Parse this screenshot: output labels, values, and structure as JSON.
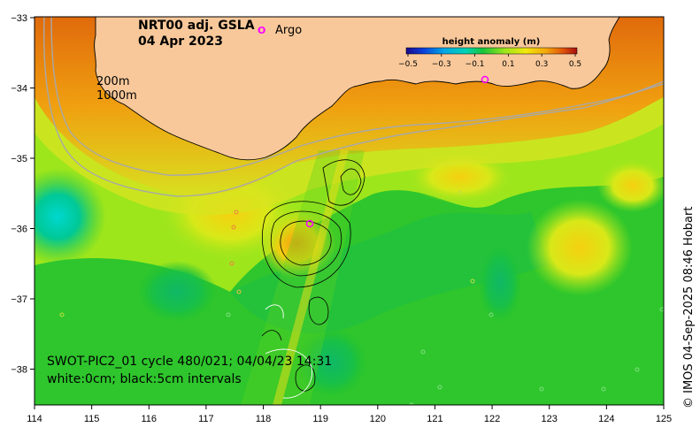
{
  "title": {
    "line1": "NRT00 adj. GSLA",
    "line2": "04 Apr 2023"
  },
  "legend": {
    "argo_marker": "O",
    "argo_label": "Argo"
  },
  "isobaths": {
    "label_200": "200m",
    "label_1000": "1000m"
  },
  "colorbar": {
    "title": "height anomaly (m)",
    "ticks": [
      "−0.5",
      "−0.3",
      "−0.1",
      "0.1",
      "0.3",
      "0.5"
    ],
    "colors": [
      "#1a0a8c",
      "#0b3fd9",
      "#00a6e8",
      "#00d4b5",
      "#19c43a",
      "#9ee61c",
      "#f2e80d",
      "#f5a60a",
      "#e0520a",
      "#a50d0d"
    ]
  },
  "overlay": {
    "line1": "SWOT-PIC2_01 cycle 480/021; 04/04/23 14:31",
    "line2": "white:0cm; black:5cm intervals"
  },
  "credit": "© IMOS 04-Sep-2025 08:46 Hobart",
  "axes": {
    "x_ticks": [
      "114",
      "115",
      "116",
      "117",
      "118",
      "119",
      "120",
      "121",
      "122",
      "123",
      "124",
      "125"
    ],
    "y_ticks": [
      "−33",
      "−34",
      "−35",
      "−36",
      "−37",
      "−38"
    ]
  },
  "colors": {
    "land": "#f8c89a",
    "argo": "#ff00ff"
  }
}
